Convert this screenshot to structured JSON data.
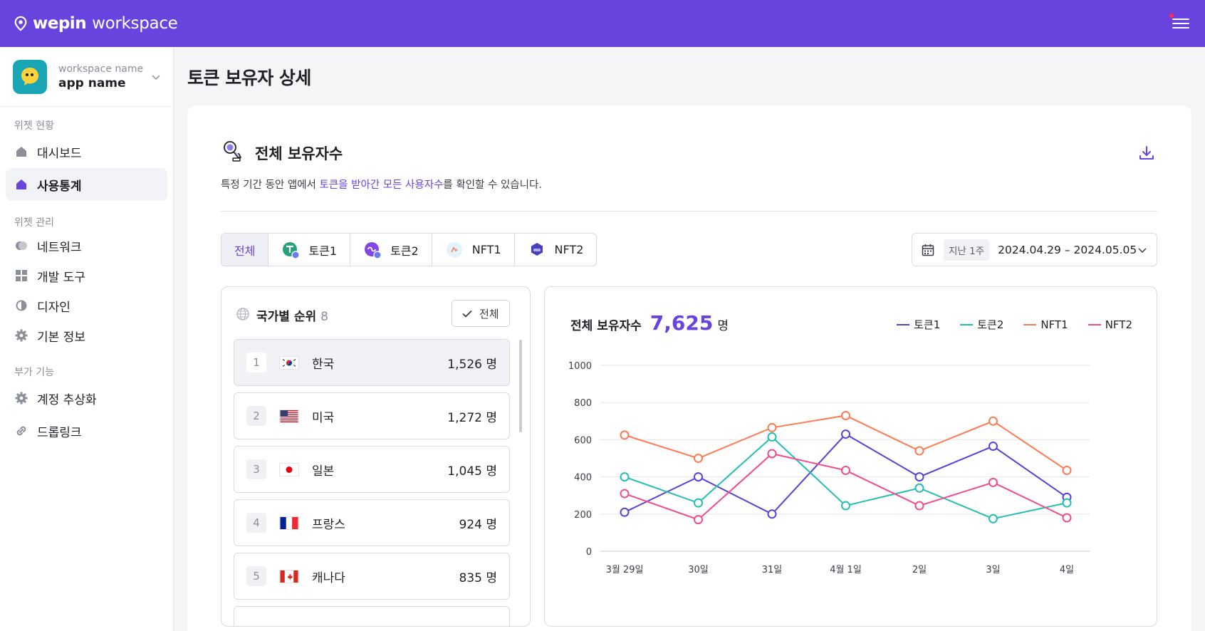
{
  "brand": {
    "name": "wepin",
    "sub": "workspace"
  },
  "workspace": {
    "name_label": "workspace name",
    "app_name": "app name"
  },
  "sidebar": {
    "groups": [
      {
        "label": "위젯 현황",
        "items": [
          {
            "label": "대시보드",
            "icon": "home-icon"
          },
          {
            "label": "사용통계",
            "icon": "home-icon",
            "active": true
          }
        ]
      },
      {
        "label": "위젯 관리",
        "items": [
          {
            "label": "네트워크",
            "icon": "toggle-icon"
          },
          {
            "label": "개발 도구",
            "icon": "grid-icon"
          },
          {
            "label": "디자인",
            "icon": "contrast-icon"
          },
          {
            "label": "기본 정보",
            "icon": "gear-icon"
          }
        ]
      },
      {
        "label": "부가 기능",
        "items": [
          {
            "label": "계정 추상화",
            "icon": "gear-icon"
          },
          {
            "label": "드롭링크",
            "icon": "link-icon"
          }
        ]
      }
    ]
  },
  "page": {
    "title": "토큰 보유자 상세"
  },
  "section": {
    "title": "전체 보유자수",
    "desc_pre": "특정 기간 동안 앱에서 ",
    "desc_hl": "토큰을 받아간 모든 사용자수",
    "desc_post": "를 확인할 수 있습니다."
  },
  "tabs": [
    {
      "label": "전체",
      "active": true
    },
    {
      "label": "토큰1"
    },
    {
      "label": "토큰2"
    },
    {
      "label": "NFT1"
    },
    {
      "label": "NFT2"
    }
  ],
  "date": {
    "preset": "지난 1주",
    "range": "2024.04.29 – 2024.05.05"
  },
  "country": {
    "title": "국가별 순위",
    "count": "8",
    "filter_label": "전체",
    "rows": [
      {
        "rank": "1",
        "name": "한국",
        "value": "1,526 명"
      },
      {
        "rank": "2",
        "name": "미국",
        "value": "1,272 명"
      },
      {
        "rank": "3",
        "name": "일본",
        "value": "1,045 명"
      },
      {
        "rank": "4",
        "name": "프랑스",
        "value": "924 명"
      },
      {
        "rank": "5",
        "name": "캐나다",
        "value": "835 명"
      }
    ]
  },
  "chart_header": {
    "title": "전체 보유자수",
    "total": "7,625",
    "unit": "명"
  },
  "chart_data": {
    "type": "line",
    "categories": [
      "3월 29일",
      "30일",
      "31일",
      "4월 1일",
      "2일",
      "3일",
      "4일"
    ],
    "ylim": [
      0,
      1000
    ],
    "yticks": [
      0,
      200,
      400,
      600,
      800,
      1000
    ],
    "grid": true,
    "legend_position": "top-right",
    "series": [
      {
        "name": "토큰1",
        "color": "#5b3fd9",
        "values": [
          210,
          400,
          200,
          630,
          400,
          565,
          290
        ]
      },
      {
        "name": "토큰2",
        "color": "#22bfb0",
        "values": [
          400,
          260,
          615,
          245,
          340,
          175,
          260
        ]
      },
      {
        "name": "NFT1",
        "color": "#ff7a52",
        "values": [
          625,
          500,
          665,
          730,
          540,
          700,
          435
        ]
      },
      {
        "name": "NFT2",
        "color": "#f24b8c",
        "values": [
          310,
          170,
          525,
          435,
          245,
          370,
          180
        ]
      }
    ]
  }
}
